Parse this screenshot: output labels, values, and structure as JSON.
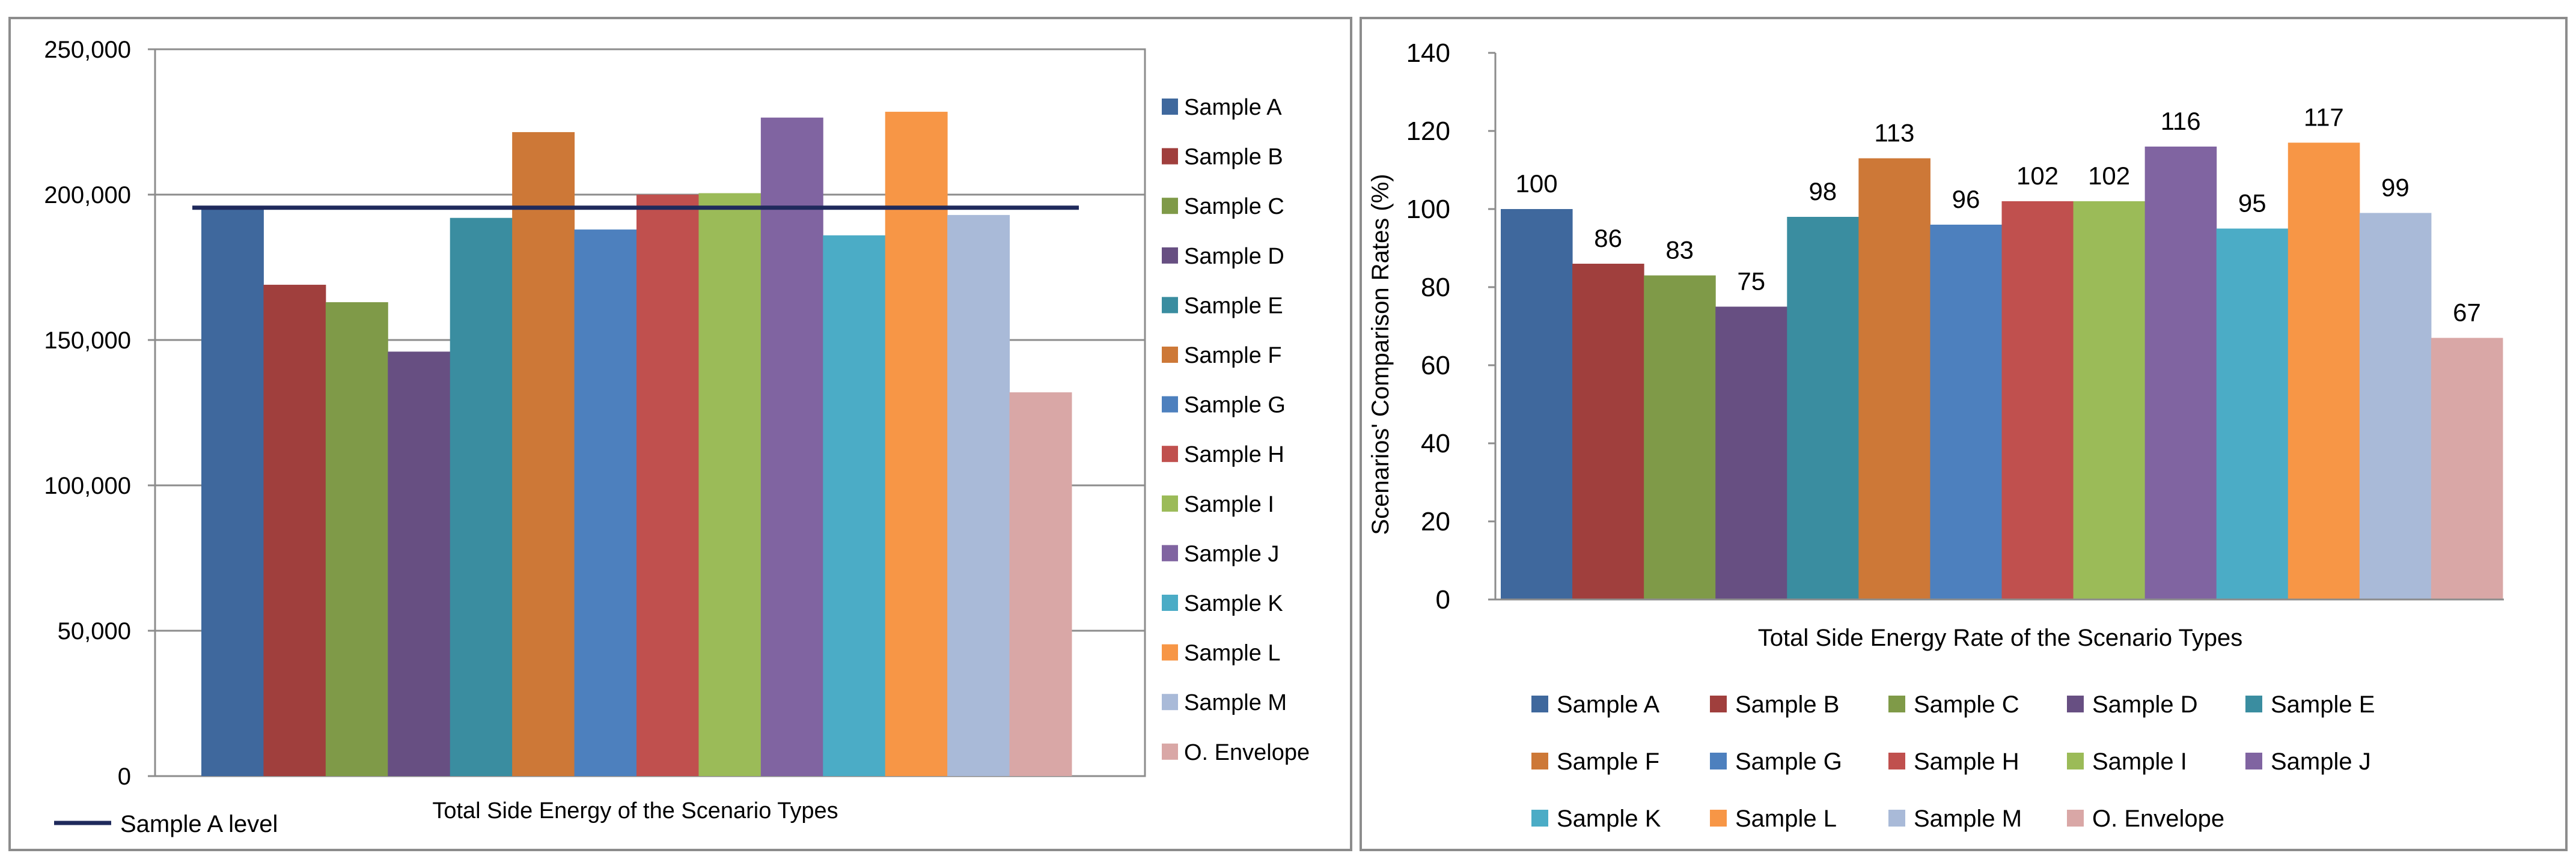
{
  "chart_data": [
    {
      "type": "bar",
      "title": "",
      "xlabel": "Total Side Energy of the Scenario Types",
      "ylabel": "",
      "ylim": [
        0,
        250000
      ],
      "yticks": [
        "0",
        "50,000",
        "100,000",
        "150,000",
        "200,000",
        "250,000"
      ],
      "ytick_values": [
        0,
        50000,
        100000,
        150000,
        200000,
        250000
      ],
      "grid": true,
      "legend_position": "right",
      "series": [
        {
          "name": "Sample A",
          "value": 195500,
          "color": "#3F689D"
        },
        {
          "name": "Sample B",
          "value": 169000,
          "color": "#A03F3D"
        },
        {
          "name": "Sample C",
          "value": 163000,
          "color": "#7F9A48"
        },
        {
          "name": "Sample D",
          "value": 146000,
          "color": "#674F82"
        },
        {
          "name": "Sample E",
          "value": 192000,
          "color": "#3A8DA0"
        },
        {
          "name": "Sample F",
          "value": 221500,
          "color": "#CD7837"
        },
        {
          "name": "Sample G",
          "value": 188000,
          "color": "#4D80BE"
        },
        {
          "name": "Sample H",
          "value": 200000,
          "color": "#C0504E"
        },
        {
          "name": "Sample I",
          "value": 200500,
          "color": "#9BBB58"
        },
        {
          "name": "Sample J",
          "value": 226500,
          "color": "#8064A1"
        },
        {
          "name": "Sample K",
          "value": 186000,
          "color": "#4BACC6"
        },
        {
          "name": "Sample L",
          "value": 228500,
          "color": "#F79646"
        },
        {
          "name": "Sample M",
          "value": 193000,
          "color": "#A9BAD8"
        },
        {
          "name": "O. Envelope",
          "value": 132000,
          "color": "#D9A7A6"
        }
      ],
      "reference_line": {
        "name": "Sample A level",
        "value": 195500,
        "color": "#1F2A5C"
      }
    },
    {
      "type": "bar",
      "title": "",
      "xlabel": "Total Side Energy Rate of the Scenario Types",
      "ylabel": "Scenarios' Comparison Rates (%)",
      "ylim": [
        0,
        140
      ],
      "yticks": [
        "0",
        "20",
        "40",
        "60",
        "80",
        "100",
        "120",
        "140"
      ],
      "ytick_values": [
        0,
        20,
        40,
        60,
        80,
        100,
        120,
        140
      ],
      "grid": false,
      "legend_position": "bottom",
      "series": [
        {
          "name": "Sample A",
          "value": 100,
          "label": "100",
          "color": "#3F689D"
        },
        {
          "name": "Sample B",
          "value": 86,
          "label": "86",
          "color": "#A03F3D"
        },
        {
          "name": "Sample C",
          "value": 83,
          "label": "83",
          "color": "#7F9A48"
        },
        {
          "name": "Sample D",
          "value": 75,
          "label": "75",
          "color": "#674F82"
        },
        {
          "name": "Sample E",
          "value": 98,
          "label": "98",
          "color": "#3A8DA0"
        },
        {
          "name": "Sample F",
          "value": 113,
          "label": "113",
          "color": "#CD7837"
        },
        {
          "name": "Sample G",
          "value": 96,
          "label": "96",
          "color": "#4D80BE"
        },
        {
          "name": "Sample H",
          "value": 102,
          "label": "102",
          "color": "#C0504E"
        },
        {
          "name": "Sample I",
          "value": 102,
          "label": "102",
          "color": "#9BBB58"
        },
        {
          "name": "Sample J",
          "value": 116,
          "label": "116",
          "color": "#8064A1"
        },
        {
          "name": "Sample K",
          "value": 95,
          "label": "95",
          "color": "#4BACC6"
        },
        {
          "name": "Sample L",
          "value": 117,
          "label": "117",
          "color": "#F79646"
        },
        {
          "name": "Sample M",
          "value": 99,
          "label": "99",
          "color": "#A9BAD8"
        },
        {
          "name": "O. Envelope",
          "value": 67,
          "label": "67",
          "color": "#D9A7A6"
        }
      ]
    }
  ]
}
